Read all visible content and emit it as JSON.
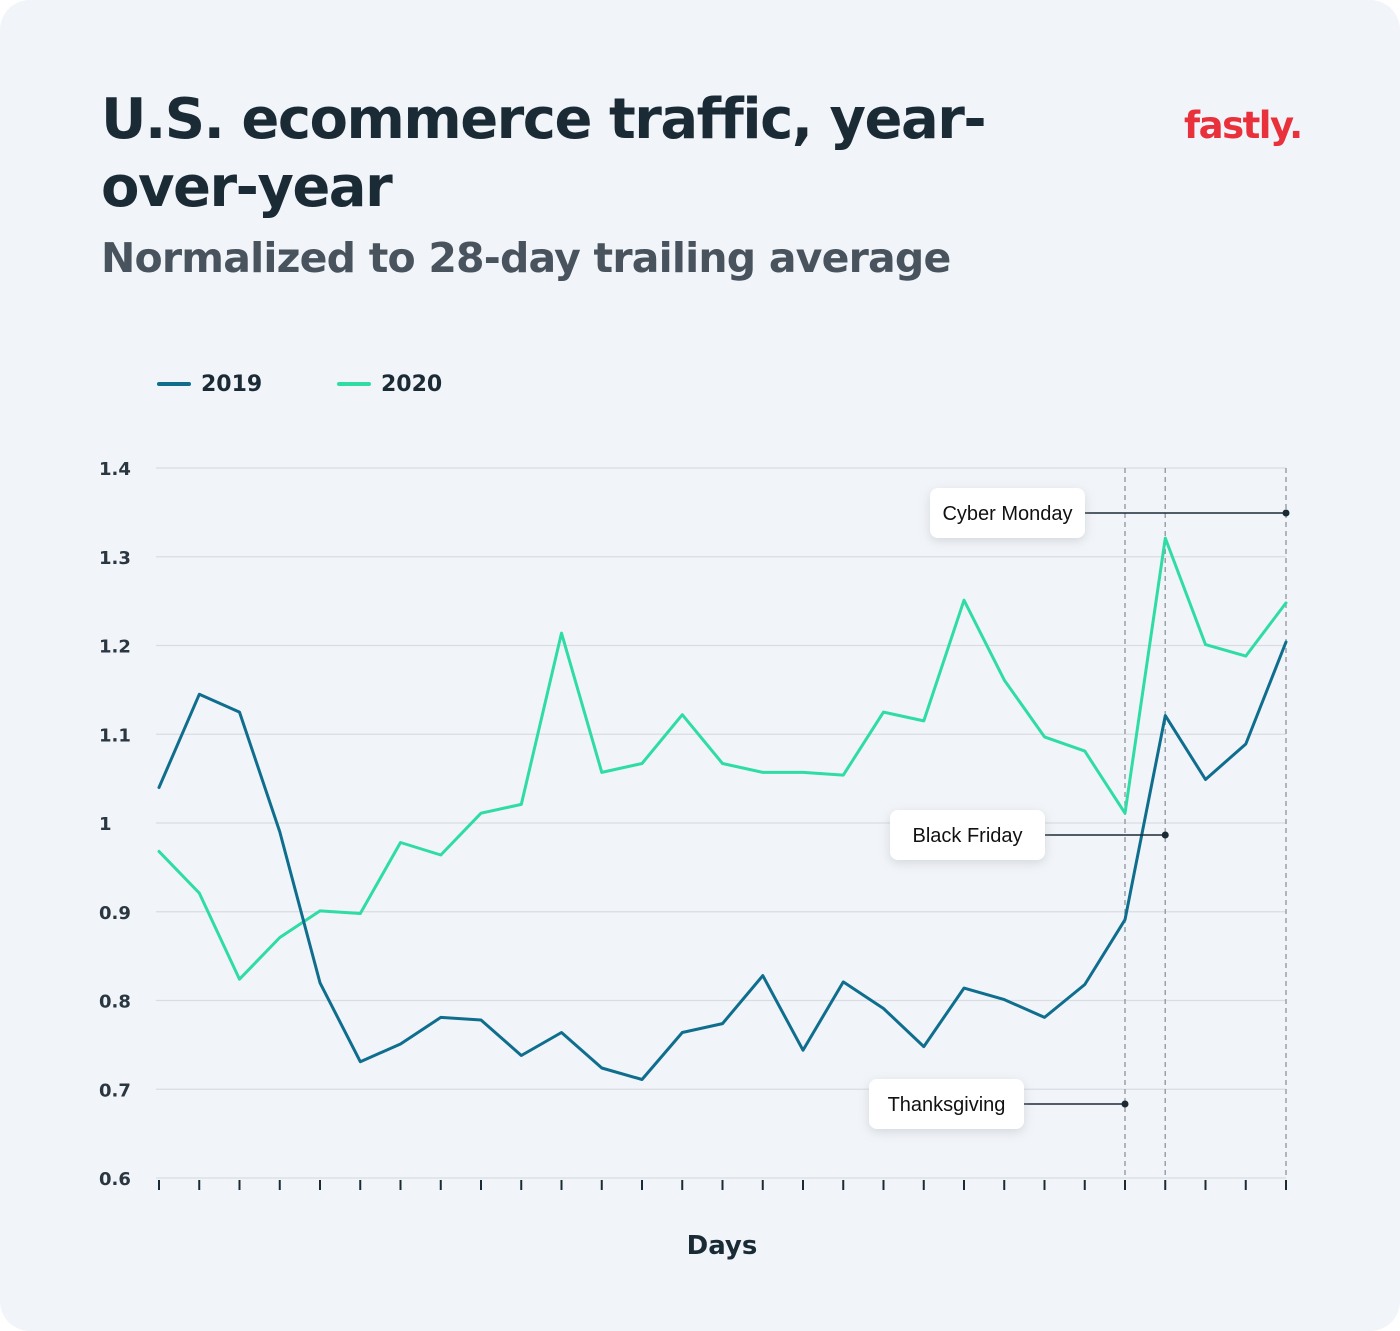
{
  "header": {
    "title": "U.S. ecommerce traffic, year-over-year",
    "subtitle": "Normalized to 28-day trailing average",
    "logo_text": "fastly."
  },
  "colors": {
    "background": "#f1f4f8",
    "series_2019": "#0f6e8e",
    "series_2020": "#2fdca4",
    "logo": "#e8313b",
    "grid": "#d9dde2"
  },
  "chart_data": {
    "type": "line",
    "title": "U.S. ecommerce traffic, year-over-year",
    "subtitle": "Normalized to 28-day trailing average",
    "xlabel": "Days",
    "ylabel": "",
    "ylim": [
      0.6,
      1.4
    ],
    "yticks": [
      0.6,
      0.7,
      0.8,
      0.9,
      1,
      1.1,
      1.2,
      1.3,
      1.4
    ],
    "ytick_labels": [
      "0.6",
      "0.7",
      "0.8",
      "0.9",
      "1",
      "1.1",
      "1.2",
      "1.3",
      "1.4"
    ],
    "x": [
      1,
      2,
      3,
      4,
      5,
      6,
      7,
      8,
      9,
      10,
      11,
      12,
      13,
      14,
      15,
      16,
      17,
      18,
      19,
      20,
      21,
      22,
      23,
      24,
      25,
      26,
      27,
      28,
      29
    ],
    "grid": true,
    "legend_position": "top-left",
    "series": [
      {
        "name": "2019",
        "values": [
          1.04,
          1.145,
          1.125,
          0.99,
          0.82,
          0.731,
          0.751,
          0.781,
          0.778,
          0.738,
          0.764,
          0.724,
          0.711,
          0.764,
          0.774,
          0.828,
          0.744,
          0.821,
          0.791,
          0.748,
          0.814,
          0.801,
          0.781,
          0.818,
          0.891,
          1.121,
          1.049,
          1.089,
          1.204
        ]
      },
      {
        "name": "2020",
        "values": [
          0.968,
          0.921,
          0.824,
          0.871,
          0.901,
          0.898,
          0.978,
          0.964,
          1.011,
          1.021,
          1.214,
          1.057,
          1.067,
          1.122,
          1.067,
          1.057,
          1.057,
          1.054,
          1.125,
          1.115,
          1.251,
          1.161,
          1.097,
          1.081,
          1.011,
          1.321,
          1.201,
          1.188,
          1.248
        ]
      }
    ],
    "annotations": [
      {
        "label": "Cyber Monday",
        "day": 29
      },
      {
        "label": "Black Friday",
        "day": 26
      },
      {
        "label": "Thanksgiving",
        "day": 25
      }
    ]
  }
}
